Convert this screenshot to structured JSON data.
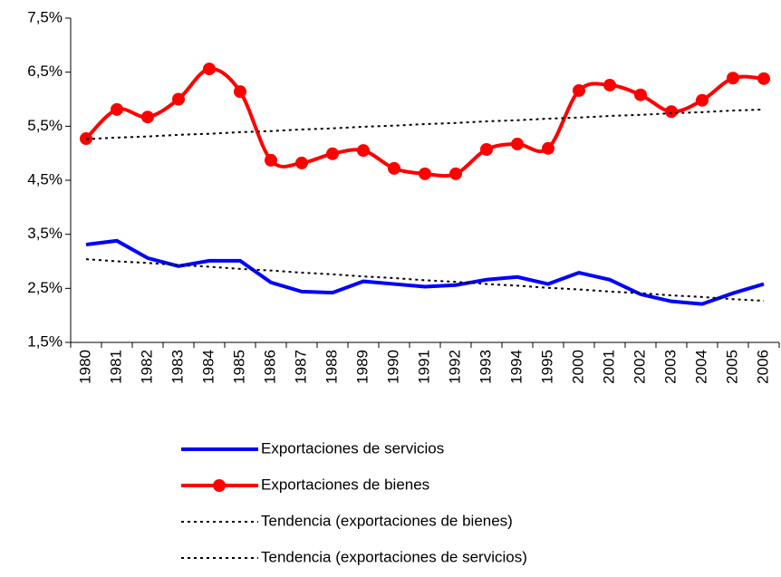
{
  "chart_data": {
    "type": "line",
    "categories": [
      "1980",
      "1981",
      "1982",
      "1983",
      "1984",
      "1985",
      "1986",
      "1987",
      "1988",
      "1989",
      "1990",
      "1991",
      "1992",
      "1993",
      "1994",
      "1995",
      "2000",
      "2001",
      "2002",
      "2003",
      "2004",
      "2005",
      "2006"
    ],
    "ylim": [
      1.5,
      7.5
    ],
    "yticks": [
      {
        "value": 1.5,
        "label": "1,5%"
      },
      {
        "value": 2.5,
        "label": "2,5%"
      },
      {
        "value": 3.5,
        "label": "3,5%"
      },
      {
        "value": 4.5,
        "label": "4,5%"
      },
      {
        "value": 5.5,
        "label": "5,5%"
      },
      {
        "value": 6.5,
        "label": "6,5%"
      },
      {
        "value": 7.5,
        "label": "7,5%"
      }
    ],
    "series": [
      {
        "name": "Exportaciones de servicios",
        "color": "#0000ff",
        "style": "solid",
        "marker": false,
        "smooth": false,
        "values": [
          3.31,
          3.38,
          3.06,
          2.91,
          3.01,
          3.01,
          2.61,
          2.44,
          2.42,
          2.63,
          2.58,
          2.53,
          2.56,
          2.66,
          2.71,
          2.58,
          2.79,
          2.66,
          2.39,
          2.26,
          2.21,
          2.41,
          2.58
        ]
      },
      {
        "name": "Exportaciones de bienes",
        "color": "#ff0000",
        "style": "solid",
        "marker": true,
        "smooth": true,
        "values": [
          5.27,
          5.81,
          5.67,
          6.0,
          6.56,
          6.14,
          4.87,
          4.82,
          4.99,
          5.05,
          4.72,
          4.62,
          4.62,
          5.07,
          5.17,
          5.09,
          6.16,
          6.26,
          6.08,
          5.77,
          5.98,
          6.39,
          6.38
        ]
      },
      {
        "name": "Tendencia (exportaciones de bienes)",
        "color": "#000000",
        "style": "dotted",
        "marker": false,
        "smooth": false,
        "values": [
          5.26,
          5.29,
          5.31,
          5.34,
          5.36,
          5.39,
          5.41,
          5.44,
          5.46,
          5.49,
          5.51,
          5.54,
          5.56,
          5.59,
          5.61,
          5.64,
          5.66,
          5.69,
          5.71,
          5.74,
          5.76,
          5.79,
          5.81
        ]
      },
      {
        "name": "Tendencia (exportaciones de servicios)",
        "color": "#000000",
        "style": "dotted",
        "marker": false,
        "smooth": false,
        "values": [
          3.04,
          3.0,
          2.97,
          2.93,
          2.9,
          2.86,
          2.83,
          2.79,
          2.76,
          2.72,
          2.69,
          2.65,
          2.62,
          2.58,
          2.55,
          2.51,
          2.48,
          2.44,
          2.41,
          2.37,
          2.34,
          2.3,
          2.27
        ]
      }
    ]
  }
}
